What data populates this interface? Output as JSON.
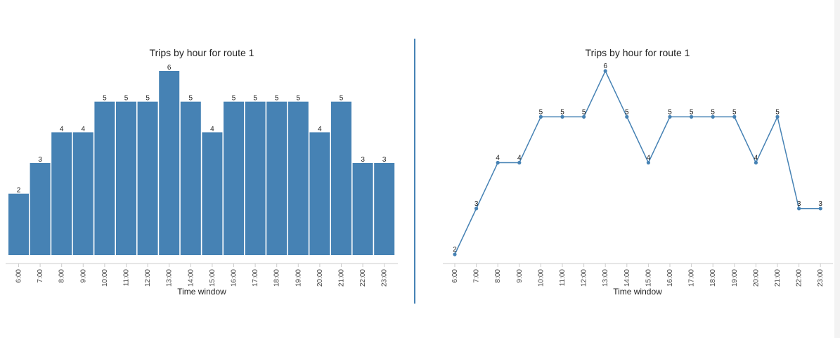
{
  "chart_data": [
    {
      "type": "bar",
      "title": "Trips by hour for route 1",
      "xlabel": "Time window",
      "ylabel": "",
      "ylim": [
        0,
        6
      ],
      "categories": [
        "6:00",
        "7:00",
        "8:00",
        "9:00",
        "10:00",
        "11:00",
        "12:00",
        "13:00",
        "14:00",
        "15:00",
        "16:00",
        "17:00",
        "18:00",
        "19:00",
        "20:00",
        "21:00",
        "22:00",
        "23:00"
      ],
      "values": [
        2,
        3,
        4,
        4,
        5,
        5,
        5,
        6,
        5,
        4,
        5,
        5,
        5,
        5,
        4,
        5,
        3,
        3
      ],
      "color": "#4682b4",
      "grid": false,
      "legend": "none"
    },
    {
      "type": "line",
      "title": "Trips by hour for route 1",
      "xlabel": "Time window",
      "ylabel": "",
      "ylim": [
        2,
        6
      ],
      "categories": [
        "6:00",
        "7:00",
        "8:00",
        "9:00",
        "10:00",
        "11:00",
        "12:00",
        "13:00",
        "14:00",
        "15:00",
        "16:00",
        "17:00",
        "18:00",
        "19:00",
        "20:00",
        "21:00",
        "22:00",
        "23:00"
      ],
      "values": [
        2,
        3,
        4,
        4,
        5,
        5,
        5,
        6,
        5,
        4,
        5,
        5,
        5,
        5,
        4,
        5,
        3,
        3
      ],
      "color": "#4682b4",
      "grid": false,
      "legend": "none"
    }
  ],
  "divider_color": "#4682b4"
}
